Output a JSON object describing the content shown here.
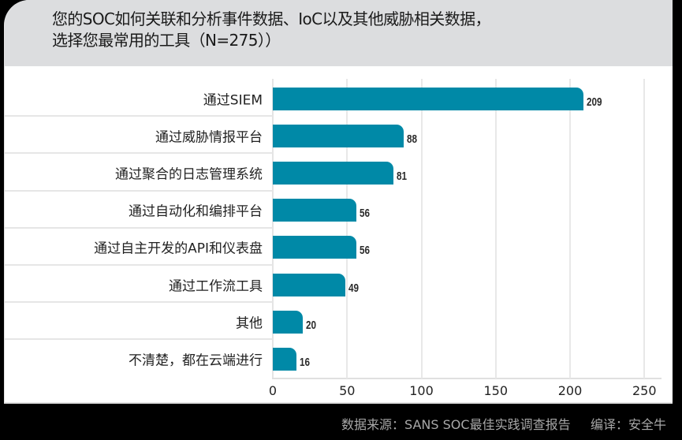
{
  "header": {
    "title_line1": "您的SOC如何关联和分析事件数据、IoC以及其他威胁相关数据，",
    "title_line2": "选择您最常用的工具（N=275））"
  },
  "footer": {
    "source": "数据来源：SANS SOC最佳实践调查报告     编译：安全牛"
  },
  "colors": {
    "bar": "#0089a7",
    "header_bg": "#dcdddf",
    "frame": "#000000"
  },
  "chart_data": {
    "type": "bar",
    "orientation": "horizontal",
    "title": "您的SOC如何关联和分析事件数据、IoC以及其他威胁相关数据，选择您最常用的工具（N=275））",
    "categories": [
      "通过SIEM",
      "通过威胁情报平台",
      "通过聚合的日志管理系统",
      "通过自动化和编排平台",
      "通过自主开发的API和仪表盘",
      "通过工作流工具",
      "其他",
      "不清楚，都在云端进行"
    ],
    "values": [
      209,
      88,
      81,
      56,
      56,
      49,
      20,
      16
    ],
    "xlabel": "",
    "ylabel": "",
    "xlim": [
      0,
      260
    ],
    "xticks": [
      0,
      50,
      100,
      150,
      200,
      250
    ],
    "grid": "vertical",
    "data_labels": true,
    "source": "数据来源：SANS SOC最佳实践调查报告",
    "annotation": "编译：安全牛"
  }
}
